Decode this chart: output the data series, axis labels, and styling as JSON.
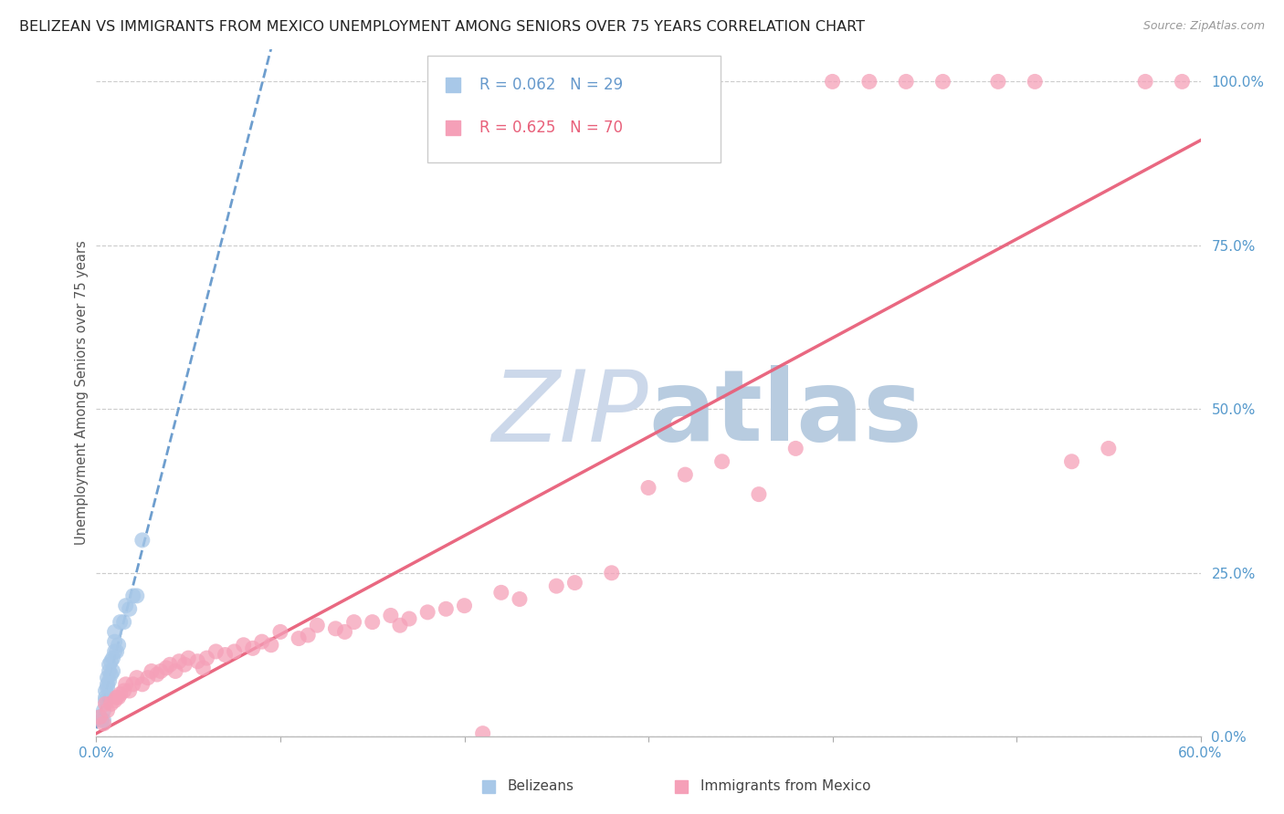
{
  "title": "BELIZEAN VS IMMIGRANTS FROM MEXICO UNEMPLOYMENT AMONG SENIORS OVER 75 YEARS CORRELATION CHART",
  "source": "Source: ZipAtlas.com",
  "ylabel": "Unemployment Among Seniors over 75 years",
  "xlim": [
    0.0,
    0.6
  ],
  "ylim": [
    0.0,
    1.05
  ],
  "belizean_R": 0.062,
  "belizean_N": 29,
  "mexico_R": 0.625,
  "mexico_N": 70,
  "belizean_color": "#a8c8e8",
  "mexico_color": "#f5a0b8",
  "belizean_line_color": "#6699cc",
  "mexico_line_color": "#e8607a",
  "bg_color": "#ffffff",
  "grid_color": "#c8c8c8",
  "watermark_zip_color": "#ccd8ea",
  "watermark_atlas_color": "#b8cce0",
  "tick_color": "#5599cc",
  "legend_label_belizean": "Belizeans",
  "legend_label_mexico": "Immigrants from Mexico",
  "title_fontsize": 11.5,
  "tick_fontsize": 11,
  "belizean_x": [
    0.002,
    0.003,
    0.004,
    0.004,
    0.005,
    0.005,
    0.005,
    0.006,
    0.006,
    0.006,
    0.007,
    0.007,
    0.007,
    0.008,
    0.008,
    0.009,
    0.009,
    0.01,
    0.01,
    0.01,
    0.011,
    0.012,
    0.013,
    0.015,
    0.016,
    0.018,
    0.02,
    0.022,
    0.025
  ],
  "belizean_y": [
    0.03,
    0.025,
    0.04,
    0.025,
    0.055,
    0.06,
    0.07,
    0.075,
    0.08,
    0.09,
    0.085,
    0.1,
    0.11,
    0.095,
    0.115,
    0.1,
    0.12,
    0.13,
    0.145,
    0.16,
    0.13,
    0.14,
    0.175,
    0.175,
    0.2,
    0.195,
    0.215,
    0.215,
    0.3
  ],
  "mexico_x": [
    0.002,
    0.004,
    0.005,
    0.006,
    0.008,
    0.01,
    0.011,
    0.012,
    0.013,
    0.015,
    0.016,
    0.018,
    0.02,
    0.022,
    0.025,
    0.028,
    0.03,
    0.033,
    0.035,
    0.038,
    0.04,
    0.043,
    0.045,
    0.048,
    0.05,
    0.055,
    0.058,
    0.06,
    0.065,
    0.07,
    0.075,
    0.08,
    0.085,
    0.09,
    0.095,
    0.1,
    0.11,
    0.115,
    0.12,
    0.13,
    0.135,
    0.14,
    0.15,
    0.16,
    0.165,
    0.17,
    0.18,
    0.19,
    0.2,
    0.21,
    0.22,
    0.23,
    0.25,
    0.26,
    0.28,
    0.3,
    0.32,
    0.34,
    0.36,
    0.38,
    0.4,
    0.42,
    0.44,
    0.46,
    0.49,
    0.51,
    0.53,
    0.55,
    0.57,
    0.59
  ],
  "mexico_y": [
    0.03,
    0.02,
    0.05,
    0.04,
    0.05,
    0.055,
    0.06,
    0.06,
    0.065,
    0.07,
    0.08,
    0.07,
    0.08,
    0.09,
    0.08,
    0.09,
    0.1,
    0.095,
    0.1,
    0.105,
    0.11,
    0.1,
    0.115,
    0.11,
    0.12,
    0.115,
    0.105,
    0.12,
    0.13,
    0.125,
    0.13,
    0.14,
    0.135,
    0.145,
    0.14,
    0.16,
    0.15,
    0.155,
    0.17,
    0.165,
    0.16,
    0.175,
    0.175,
    0.185,
    0.17,
    0.18,
    0.19,
    0.195,
    0.2,
    0.005,
    0.22,
    0.21,
    0.23,
    0.235,
    0.25,
    0.38,
    0.4,
    0.42,
    0.37,
    0.44,
    1.0,
    1.0,
    1.0,
    1.0,
    1.0,
    1.0,
    0.42,
    0.44,
    1.0,
    1.0
  ]
}
